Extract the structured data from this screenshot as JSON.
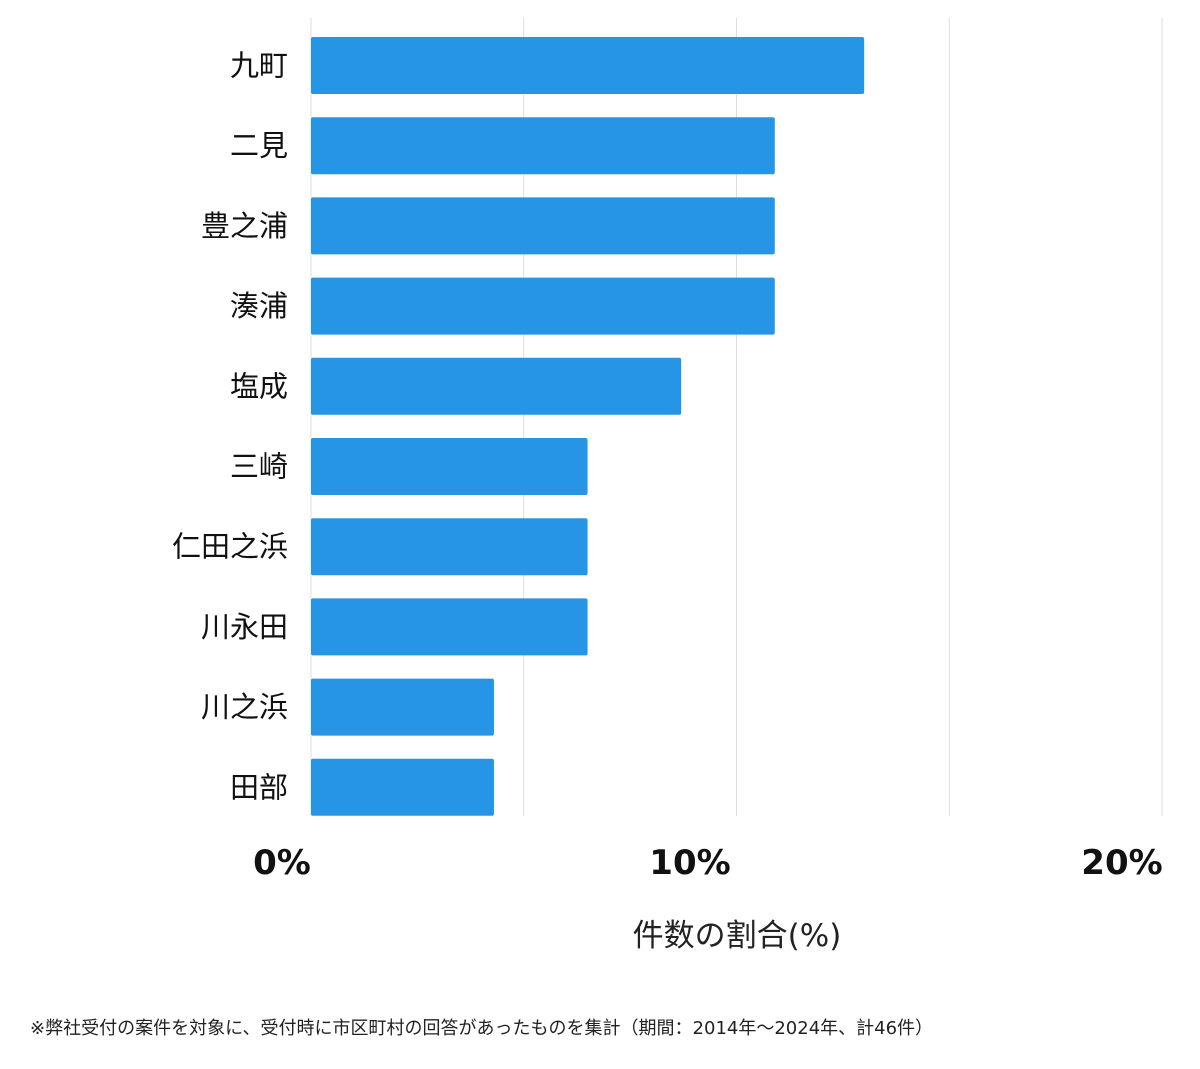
{
  "chart_data": {
    "type": "bar",
    "orientation": "horizontal",
    "categories": [
      "九町",
      "二見",
      "豊之浦",
      "湊浦",
      "塩成",
      "三崎",
      "仁田之浜",
      "川永田",
      "川之浜",
      "田部"
    ],
    "values": [
      13.0,
      10.9,
      10.9,
      10.9,
      8.7,
      6.5,
      6.5,
      6.5,
      4.3,
      4.3
    ],
    "xlabel": "件数の割合(%)",
    "xlim": [
      0,
      20
    ],
    "xticks": [
      0,
      10,
      20
    ],
    "xtick_labels": [
      "0%",
      "10%",
      "20%"
    ],
    "gridlines": [
      0,
      5,
      10,
      15,
      20
    ],
    "grid": true,
    "bar_color": "#2795e5",
    "grid_color": "#dddddd"
  },
  "footnote": "※弊社受付の案件を対象に、受付時に市区町村の回答があったものを集計（期間：2014年～2024年、計46件）"
}
